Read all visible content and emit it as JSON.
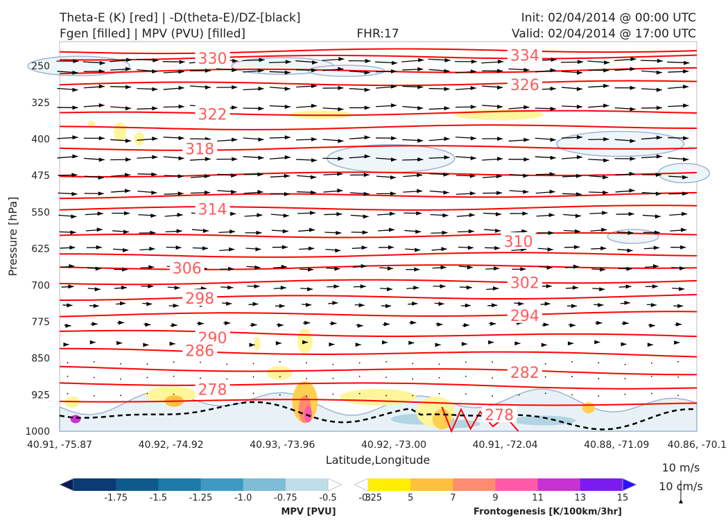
{
  "header": {
    "title_line1": "Theta-E (K) [red] | -D(theta-E)/DZ-[black]",
    "title_line2": "Fgen [filled] | MPV (PVU) [filled]",
    "fhr": "FHR:17",
    "init": "Init: 02/04/2014 @ 00:00 UTC",
    "valid": "Valid: 02/04/2014 @ 17:00 UTC"
  },
  "chart_data": {
    "type": "cross-section",
    "xlabel": "Latitude,Longitude",
    "ylabel": "Pressure [hPa]",
    "x_ticks": [
      "40.91, -75.87",
      "40.92, -74.92",
      "40.93, -73.96",
      "40.92, -73.00",
      "40.91, -72.04",
      "40.88, -71.09",
      "40.86, -70.1"
    ],
    "y_ticks": [
      250,
      325,
      400,
      475,
      550,
      625,
      700,
      775,
      850,
      925,
      1000
    ],
    "ylim": [
      1000,
      200
    ],
    "y_reversed": true,
    "theta_e_labels": [
      {
        "value": "330",
        "x_frac": 0.24,
        "p": 234
      },
      {
        "value": "334",
        "x_frac": 0.73,
        "p": 228
      },
      {
        "value": "326",
        "x_frac": 0.73,
        "p": 288
      },
      {
        "value": "322",
        "x_frac": 0.24,
        "p": 349
      },
      {
        "value": "318",
        "x_frac": 0.22,
        "p": 420
      },
      {
        "value": "314",
        "x_frac": 0.24,
        "p": 544
      },
      {
        "value": "310",
        "x_frac": 0.72,
        "p": 610
      },
      {
        "value": "306",
        "x_frac": 0.2,
        "p": 665
      },
      {
        "value": "302",
        "x_frac": 0.73,
        "p": 695
      },
      {
        "value": "298",
        "x_frac": 0.22,
        "p": 727
      },
      {
        "value": "294",
        "x_frac": 0.73,
        "p": 762
      },
      {
        "value": "290",
        "x_frac": 0.24,
        "p": 808
      },
      {
        "value": "286",
        "x_frac": 0.22,
        "p": 834
      },
      {
        "value": "282",
        "x_frac": 0.73,
        "p": 879
      },
      {
        "value": "278",
        "x_frac": 0.24,
        "p": 914
      },
      {
        "value": "278",
        "x_frac": 0.69,
        "p": 966
      }
    ],
    "wind_key": {
      "horizontal": "10 m/s",
      "vertical": "10 cm/s"
    },
    "mpv_colorbar": {
      "title": "MPV [PVU]",
      "ticks": [
        "-1.75",
        "-1.5",
        "-1.25",
        "-1.0",
        "-0.75",
        "-0.5",
        "-0.25"
      ],
      "colors": [
        "#081d58",
        "#0b3b73",
        "#0f5a8c",
        "#1c7ba8",
        "#3f9ac2",
        "#7fbcd6",
        "#bfdde8",
        "#ffffff"
      ]
    },
    "fgen_colorbar": {
      "title": "Frontogenesis [K/100km/3hr]",
      "ticks": [
        "3",
        "5",
        "7",
        "9",
        "11",
        "13",
        "15"
      ],
      "colors": [
        "#ffffff",
        "#ffee00",
        "#ffc040",
        "#ff8c70",
        "#ff5aa8",
        "#c832d2",
        "#7a1cf0",
        "#2a14ff"
      ]
    }
  }
}
